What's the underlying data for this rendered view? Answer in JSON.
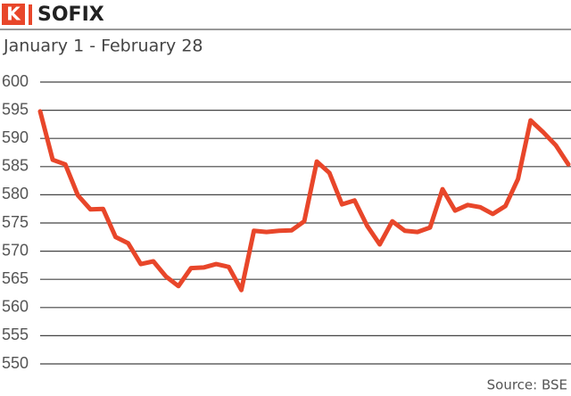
{
  "logo": "K",
  "chart_data": {
    "type": "line",
    "title": "SOFIX",
    "subtitle": "January 1 - February 28",
    "source": "Source: BSE",
    "color": "#e8462a",
    "grid": true,
    "ylim": [
      550,
      600
    ],
    "yticks": [
      550,
      555,
      560,
      565,
      570,
      575,
      580,
      585,
      590,
      595,
      600
    ],
    "values": [
      594.8,
      586.2,
      585.4,
      579.9,
      577.4,
      577.5,
      572.5,
      571.4,
      567.7,
      568.2,
      565.5,
      563.8,
      567.0,
      567.1,
      567.7,
      567.2,
      563.1,
      573.6,
      573.4,
      573.6,
      573.7,
      575.3,
      585.9,
      583.9,
      578.3,
      579.0,
      574.5,
      571.2,
      575.3,
      573.6,
      573.4,
      574.2,
      581.0,
      577.2,
      578.2,
      577.8,
      576.6,
      578.0,
      582.8,
      593.2,
      591.1,
      588.8,
      585.4
    ]
  }
}
